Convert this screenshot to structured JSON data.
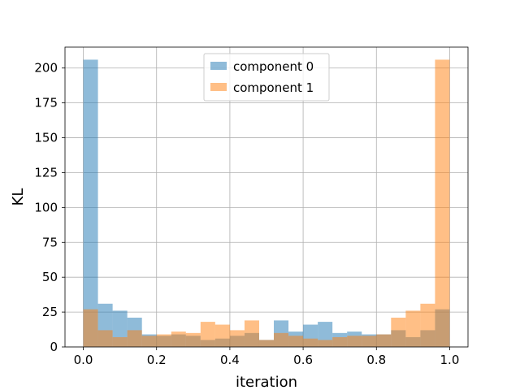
{
  "chart_data": {
    "type": "bar",
    "xlabel": "iteration",
    "ylabel": "KL",
    "xlim": [
      -0.05,
      1.05
    ],
    "ylim": [
      0,
      215
    ],
    "grid": true,
    "legend_position": "top-center",
    "bin_edges": [
      0.0,
      0.04,
      0.08,
      0.12,
      0.16,
      0.2,
      0.24,
      0.28,
      0.32,
      0.36,
      0.4,
      0.44,
      0.48,
      0.52,
      0.56,
      0.6,
      0.64,
      0.68,
      0.72,
      0.76,
      0.8,
      0.84,
      0.88,
      0.92,
      0.96,
      1.0
    ],
    "x_ticks": [
      {
        "value": 0.0,
        "label": "0.0"
      },
      {
        "value": 0.2,
        "label": "0.2"
      },
      {
        "value": 0.4,
        "label": "0.4"
      },
      {
        "value": 0.6,
        "label": "0.6"
      },
      {
        "value": 0.8,
        "label": "0.8"
      },
      {
        "value": 1.0,
        "label": "1.0"
      }
    ],
    "y_ticks": [
      {
        "value": 0,
        "label": "0"
      },
      {
        "value": 25,
        "label": "25"
      },
      {
        "value": 50,
        "label": "50"
      },
      {
        "value": 75,
        "label": "75"
      },
      {
        "value": 100,
        "label": "100"
      },
      {
        "value": 125,
        "label": "125"
      },
      {
        "value": 150,
        "label": "150"
      },
      {
        "value": 175,
        "label": "175"
      },
      {
        "value": 200,
        "label": "200"
      }
    ],
    "series": [
      {
        "name": "component 0",
        "color": "#1f77b4",
        "opacity": 0.5,
        "values": [
          206,
          31,
          26,
          21,
          9,
          8,
          9,
          8,
          5,
          6,
          8,
          10,
          5,
          19,
          11,
          16,
          18,
          10,
          11,
          9,
          9,
          12,
          7,
          12,
          27
        ]
      },
      {
        "name": "component 1",
        "color": "#ff7f0e",
        "opacity": 0.5,
        "values": [
          27,
          12,
          7,
          12,
          8,
          9,
          11,
          10,
          18,
          16,
          12,
          19,
          5,
          10,
          8,
          6,
          5,
          7,
          8,
          8,
          9,
          21,
          26,
          31,
          206
        ]
      }
    ]
  }
}
